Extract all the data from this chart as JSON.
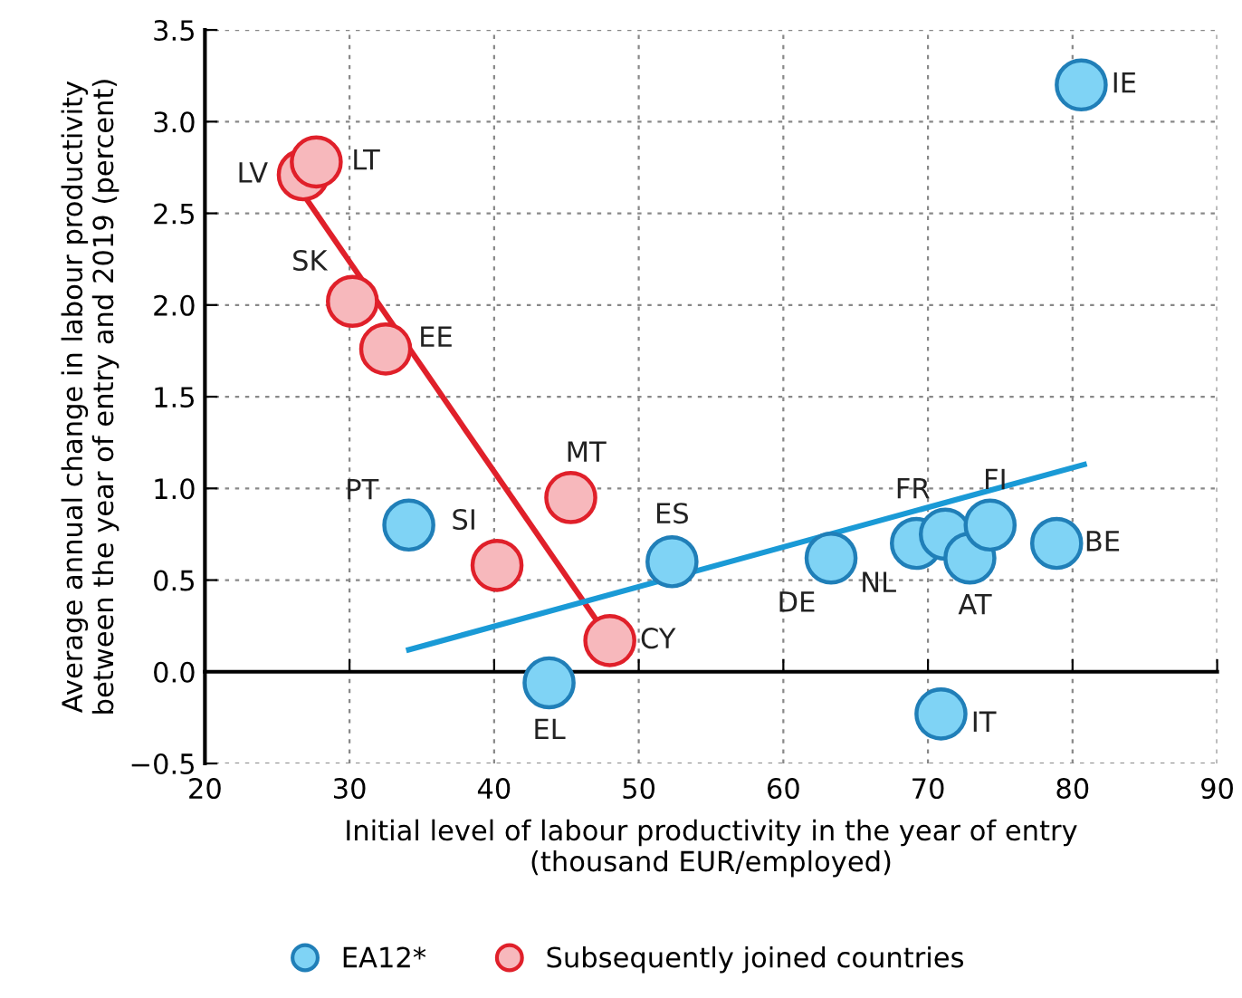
{
  "chart_data": {
    "type": "scatter",
    "xlabel": "Initial level of labour productivity in the year of entry\n(thousand EUR/employed)",
    "ylabel": "Average annual change in labour productivity\nbetween the year of entry and 2019 (percent)",
    "xlim": [
      20,
      90
    ],
    "xticks": [
      20,
      30,
      40,
      50,
      60,
      70,
      80,
      90
    ],
    "ylim": [
      -0.5,
      3.5
    ],
    "yticks": [
      {
        "value": -0.5,
        "label": "−0.5"
      },
      {
        "value": 0,
        "label": "0.0"
      },
      0.5,
      {
        "value": 1,
        "label": "1.0"
      },
      1.5,
      {
        "value": 2,
        "label": "2.0"
      },
      2.5,
      {
        "value": 3,
        "label": "3.0"
      },
      3.5
    ],
    "grid": true,
    "legend": "bottom",
    "marker": "circle",
    "series": [
      {
        "name": "EA12*",
        "color": "#7fd3f5",
        "x": [
          80.6,
          34.1,
          43.8,
          52.3,
          63.3,
          69.2,
          71.2,
          72.9,
          74.3,
          78.9,
          70.9
        ],
        "values": [
          3.2,
          0.8,
          -0.06,
          0.6,
          0.62,
          0.7,
          0.75,
          0.62,
          0.8,
          0.7,
          -0.23
        ]
      },
      {
        "name": "Subsequently joined countries",
        "color": "#f7b8bc",
        "x": [
          26.8,
          27.7,
          30.2,
          32.5,
          40.2,
          45.3,
          48.0
        ],
        "values": [
          2.71,
          2.78,
          2.02,
          1.76,
          0.58,
          0.95,
          0.17
        ]
      },
      {
        "type": "line",
        "marker": "none",
        "color": "#e0202a",
        "x": [
          27.0,
          47.0
        ],
        "values": [
          2.58,
          0.29
        ]
      },
      {
        "type": "line",
        "marker": "none",
        "color": "#1a9ad6",
        "x": [
          34.1,
          80.8
        ],
        "values": [
          0.12,
          1.13
        ]
      }
    ],
    "annotations": [
      {
        "text": "IE",
        "x": 80.6,
        "y": 3.2
      },
      {
        "text": "PT",
        "x": 34.1,
        "y": 0.8
      },
      {
        "text": "EL",
        "x": 43.8,
        "y": -0.06
      },
      {
        "text": "ES",
        "x": 52.3,
        "y": 0.6
      },
      {
        "text": "DE",
        "x": 63.3,
        "y": 0.62
      },
      {
        "text": "NL",
        "x": 69.2,
        "y": 0.7
      },
      {
        "text": "FR",
        "x": 71.2,
        "y": 0.75
      },
      {
        "text": "AT",
        "x": 72.9,
        "y": 0.62
      },
      {
        "text": "FI",
        "x": 74.3,
        "y": 0.8
      },
      {
        "text": "BE",
        "x": 78.9,
        "y": 0.7
      },
      {
        "text": "IT",
        "x": 70.9,
        "y": -0.23
      },
      {
        "text": "LV",
        "x": 26.8,
        "y": 2.71
      },
      {
        "text": "LT",
        "x": 27.7,
        "y": 2.78
      },
      {
        "text": "SK",
        "x": 30.2,
        "y": 2.02
      },
      {
        "text": "EE",
        "x": 32.5,
        "y": 1.76
      },
      {
        "text": "SI",
        "x": 40.2,
        "y": 0.58
      },
      {
        "text": "MT",
        "x": 45.3,
        "y": 0.95
      },
      {
        "text": "CY",
        "x": 48.0,
        "y": 0.17
      }
    ]
  }
}
